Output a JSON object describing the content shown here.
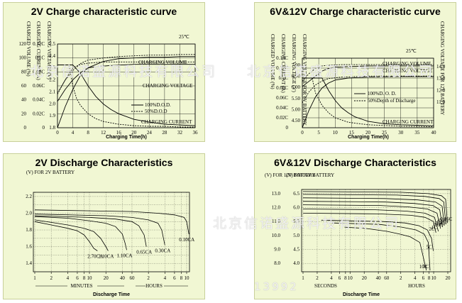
{
  "watermarks": {
    "company": "北京信诺盛源科技有限公司",
    "phone": "13992"
  },
  "chart_data": [
    {
      "id": "c1",
      "type": "line",
      "title": "2V Charge characteristic curve",
      "temperature": "25℃",
      "xlabel": "Charging Time(h)",
      "x_ticks": [
        "0",
        "4",
        "8",
        "12",
        "16",
        "20",
        "24",
        "28",
        "32",
        "36"
      ],
      "xlim": [
        0,
        36
      ],
      "axis_headers": [
        "CHARGED VOLUME (%)",
        "CHARGING CURRENT (A)",
        "CHARGING VOLTAGE (V)"
      ],
      "y_left_ticks": [
        "0",
        "20",
        "40",
        "60",
        "80",
        "100",
        "120"
      ],
      "y_current_ticks": [
        "0",
        "0.02C",
        "0.04C",
        "0.06C",
        "0.08C",
        "0.1C",
        "0.12C"
      ],
      "y_voltage_ticks": [
        "1.8",
        "1.9",
        "2.0",
        "2.1",
        "2.2",
        "2.3",
        "2.4",
        "2.5"
      ],
      "legend": [
        "100%D.O.D.",
        "50%D.O.D"
      ],
      "annotations": [
        "CHARGING VOLUME",
        "CHARGING VOLTAGE",
        "CHARGING CURRENT"
      ],
      "grid": true,
      "series": [
        {
          "name": "CHARGING VOLUME",
          "style": "solid",
          "x": [
            0,
            2,
            4,
            6,
            8,
            12,
            16,
            20,
            24,
            28,
            32,
            36
          ],
          "y": [
            0,
            30,
            55,
            75,
            86,
            95,
            99,
            100,
            101,
            101,
            102,
            102
          ]
        },
        {
          "name": "CHARGING VOLUME",
          "style": "dashed",
          "x": [
            0,
            2,
            4,
            6,
            8,
            12,
            16,
            20,
            24,
            28,
            32,
            36
          ],
          "y": [
            50,
            68,
            82,
            92,
            97,
            100,
            102,
            103,
            104,
            104,
            105,
            105
          ]
        },
        {
          "name": "CHARGING VOLTAGE",
          "style": "solid",
          "x": [
            0,
            2,
            4,
            6,
            8,
            10,
            14,
            20,
            28,
            36
          ],
          "y": [
            2.02,
            2.12,
            2.2,
            2.26,
            2.3,
            2.31,
            2.32,
            2.33,
            2.33,
            2.33
          ]
        },
        {
          "name": "CHARGING VOLTAGE",
          "style": "dashed",
          "x": [
            0,
            2,
            4,
            6,
            8,
            12,
            16,
            24,
            36
          ],
          "y": [
            2.08,
            2.2,
            2.3,
            2.33,
            2.34,
            2.35,
            2.35,
            2.35,
            2.35
          ]
        },
        {
          "name": "CHARGING CURRENT",
          "style": "solid",
          "x": [
            0,
            2,
            4,
            6,
            8,
            10,
            12,
            14,
            16,
            20,
            24,
            28,
            32,
            36
          ],
          "y": [
            0.09,
            0.09,
            0.09,
            0.078,
            0.06,
            0.045,
            0.034,
            0.026,
            0.02,
            0.012,
            0.008,
            0.005,
            0.004,
            0.003
          ]
        },
        {
          "name": "CHARGING CURRENT",
          "style": "dashed",
          "x": [
            0,
            2,
            3,
            4,
            5,
            6,
            8,
            10,
            12,
            16,
            20,
            24,
            28,
            32,
            36
          ],
          "y": [
            0.09,
            0.09,
            0.09,
            0.06,
            0.042,
            0.032,
            0.02,
            0.013,
            0.009,
            0.005,
            0.003,
            0.002,
            0.002,
            0.001,
            0.001
          ]
        }
      ]
    },
    {
      "id": "c2",
      "type": "line",
      "title": "6V&12V Charge characteristic curve",
      "temperature": "25℃",
      "xlabel": "Charging Time(h)",
      "x_ticks": [
        "0",
        "5",
        "10",
        "15",
        "20",
        "25",
        "30",
        "35",
        "40"
      ],
      "xlim": [
        0,
        40
      ],
      "axis_headers": [
        "CHARGED VOLUME (%)",
        "CHARGING CURRENT (A)",
        "CHARGING VOLTAGE (V)",
        "CHARGING VOLTAGE FOR 6V BATTERY",
        "CHARGING VOLTAGE FOR 12V BATTERY"
      ],
      "y_left_ticks": [
        "0",
        "20",
        "40",
        "60",
        "80",
        "100",
        "120",
        "140"
      ],
      "y_current_ticks": [
        "0",
        "0.02C",
        "0.04C",
        "0.06C",
        "0.08C",
        "0.1C",
        "0.12C",
        "0.14C"
      ],
      "y_6v_ticks": [
        "4.50",
        "5.00",
        "5.50",
        "6.00",
        "6.50",
        "7.00"
      ],
      "y_12v_ticks": [
        "11.0",
        "12.0",
        "13.0",
        "14.0"
      ],
      "legend": [
        "100%D. O. D.",
        "50%Depth of Discharge"
      ],
      "annotations": [
        "CHARGING VOLUME",
        "CHARGING VOLTAGE",
        "CHARGING CURRENT"
      ],
      "grid": true,
      "series": [
        {
          "name": "CHARGING VOLUME",
          "style": "solid",
          "x": [
            0,
            2,
            4,
            6,
            8,
            10,
            14,
            20,
            30,
            40
          ],
          "y": [
            0,
            35,
            62,
            80,
            90,
            96,
            100,
            102,
            103,
            103
          ]
        },
        {
          "name": "CHARGING VOLUME",
          "style": "dashed",
          "x": [
            0,
            2,
            4,
            6,
            8,
            12,
            20,
            30,
            40
          ],
          "y": [
            50,
            72,
            86,
            94,
            99,
            102,
            104,
            104,
            104
          ]
        },
        {
          "name": "CHARGING VOLTAGE",
          "style": "solid",
          "x": [
            0,
            2,
            4,
            6,
            8,
            10,
            14,
            20,
            30,
            40
          ],
          "y": [
            12.2,
            12.6,
            13.0,
            13.4,
            13.6,
            13.7,
            13.75,
            13.8,
            13.8,
            13.8
          ]
        },
        {
          "name": "CHARGING VOLTAGE",
          "style": "dashed",
          "x": [
            0,
            2,
            4,
            6,
            8,
            12,
            20,
            30,
            40
          ],
          "y": [
            12.6,
            13.2,
            13.6,
            13.8,
            13.85,
            13.9,
            13.9,
            13.9,
            13.9
          ]
        },
        {
          "name": "CHARGING CURRENT",
          "style": "solid",
          "x": [
            0,
            4,
            6,
            8,
            10,
            12,
            14,
            16,
            20,
            25,
            30,
            35,
            40
          ],
          "y": [
            0.1,
            0.1,
            0.1,
            0.075,
            0.055,
            0.04,
            0.03,
            0.022,
            0.013,
            0.008,
            0.006,
            0.005,
            0.004
          ]
        },
        {
          "name": "CHARGING CURRENT",
          "style": "dashed",
          "x": [
            0,
            2,
            3,
            4,
            6,
            8,
            10,
            14,
            20,
            30,
            40
          ],
          "y": [
            0.1,
            0.1,
            0.1,
            0.07,
            0.045,
            0.03,
            0.02,
            0.011,
            0.006,
            0.003,
            0.002
          ]
        }
      ]
    },
    {
      "id": "c3",
      "type": "line",
      "title": "2V Discharge Characteristics",
      "y_header": "(V) FOR 2V BATTERY",
      "y_ticks": [
        "1.4",
        "1.6",
        "1.8",
        "2.0",
        "2.2"
      ],
      "ylim": [
        1.3,
        2.25
      ],
      "x_ticks": [
        "1",
        "2",
        "4",
        "6",
        "8",
        "10",
        "20",
        "40",
        "60",
        "2",
        "4",
        "6",
        "8",
        "10"
      ],
      "x_unit_labels": [
        "MINUTES",
        "HOURS"
      ],
      "xlabel": "Discharge Time",
      "grid": true,
      "series": [
        {
          "name": "2.70CA",
          "x": [
            1,
            2,
            4,
            6,
            8,
            10,
            12,
            14
          ],
          "y": [
            1.9,
            1.86,
            1.82,
            1.79,
            1.74,
            1.66,
            1.58,
            1.55
          ]
        },
        {
          "name": "2.10CA",
          "x": [
            1,
            2,
            4,
            8,
            12,
            16,
            20,
            22
          ],
          "y": [
            1.92,
            1.89,
            1.86,
            1.82,
            1.78,
            1.7,
            1.6,
            1.55
          ]
        },
        {
          "name": "1.10CA",
          "x": [
            1,
            4,
            10,
            20,
            30,
            40,
            45,
            48
          ],
          "y": [
            1.96,
            1.94,
            1.91,
            1.88,
            1.84,
            1.75,
            1.64,
            1.56
          ]
        },
        {
          "name": "0.65CA",
          "x": [
            1,
            10,
            30,
            60,
            80,
            100,
            110
          ],
          "y": [
            1.97,
            1.95,
            1.93,
            1.9,
            1.85,
            1.74,
            1.6
          ]
        },
        {
          "name": "0.30CA",
          "x": [
            1,
            20,
            60,
            120,
            180,
            210,
            240
          ],
          "y": [
            1.99,
            1.97,
            1.95,
            1.92,
            1.88,
            1.8,
            1.62
          ]
        },
        {
          "name": "0.10CA",
          "x": [
            1,
            60,
            180,
            360,
            540,
            600,
            660
          ],
          "y": [
            2.04,
            2.02,
            2.0,
            1.98,
            1.95,
            1.9,
            1.75
          ]
        }
      ]
    },
    {
      "id": "c4",
      "type": "line",
      "title": "6V&12V Discharge Characteristics",
      "y_header_12v": "(V) FOR 12V BATTERY",
      "y_header_6v": "(V) FOR 6V BATTERY",
      "y_12v_ticks": [
        "8.0",
        "9.0",
        "10.0",
        "11.0",
        "12.0",
        "13.0"
      ],
      "y_6v_ticks": [
        "4.0",
        "4.5",
        "5.0",
        "5.5",
        "6.0",
        "6.5"
      ],
      "ylim": [
        7.4,
        13.3
      ],
      "x_ticks": [
        "1",
        "2",
        "4",
        "6",
        "8",
        "10",
        "20",
        "40",
        "60",
        "2",
        "4",
        "6",
        "8",
        "10",
        "20"
      ],
      "x_unit_labels": [
        "SECONDS",
        "HOURS"
      ],
      "xlabel": "Discharge Time",
      "grid": true,
      "series": [
        {
          "name": "10C",
          "x": [
            1,
            3,
            8,
            15,
            25,
            40,
            55
          ],
          "y": [
            10.6,
            10.5,
            10.3,
            10.1,
            9.9,
            9.5,
            7.5
          ]
        },
        {
          "name": "7C",
          "x": [
            1,
            10,
            30,
            60,
            90,
            110,
            120
          ],
          "y": [
            10.9,
            10.8,
            10.6,
            10.4,
            10.1,
            9.5,
            7.5
          ]
        },
        {
          "name": "5C",
          "x": [
            1,
            20,
            60,
            120,
            180,
            220,
            240
          ],
          "y": [
            11.1,
            11.0,
            10.9,
            10.7,
            10.4,
            9.8,
            8.9
          ]
        },
        {
          "name": "2C",
          "x": [
            1,
            60,
            300,
            600,
            900,
            1020
          ],
          "y": [
            11.6,
            11.55,
            11.45,
            11.3,
            11.0,
            10.2
          ]
        },
        {
          "name": "1C",
          "x": [
            1,
            120,
            600,
            1500,
            2400,
            2900
          ],
          "y": [
            11.9,
            11.85,
            11.75,
            11.6,
            11.3,
            10.3
          ]
        },
        {
          "name": "0.6C",
          "x": [
            1,
            300,
            1200,
            3000,
            4800,
            5700
          ],
          "y": [
            12.2,
            12.15,
            12.05,
            11.9,
            11.6,
            10.5
          ]
        },
        {
          "name": "0.4C",
          "x": [
            1,
            600,
            2400,
            6000,
            8400,
            9600
          ],
          "y": [
            12.45,
            12.4,
            12.3,
            12.15,
            11.85,
            10.6
          ]
        },
        {
          "name": "0.2C",
          "x": [
            1,
            1200,
            6000,
            14400,
            19800,
            22000
          ],
          "y": [
            12.7,
            12.65,
            12.55,
            12.4,
            12.1,
            10.7
          ]
        },
        {
          "name": "0.1C",
          "x": [
            1,
            3600,
            14400,
            28800,
            36000,
            40000
          ],
          "y": [
            12.95,
            12.9,
            12.8,
            12.65,
            12.4,
            10.8
          ]
        },
        {
          "name": "0.05C",
          "x": [
            1,
            7200,
            28800,
            54000,
            66000,
            72000
          ],
          "y": [
            13.15,
            13.1,
            13.0,
            12.85,
            12.6,
            10.9
          ]
        }
      ]
    }
  ]
}
